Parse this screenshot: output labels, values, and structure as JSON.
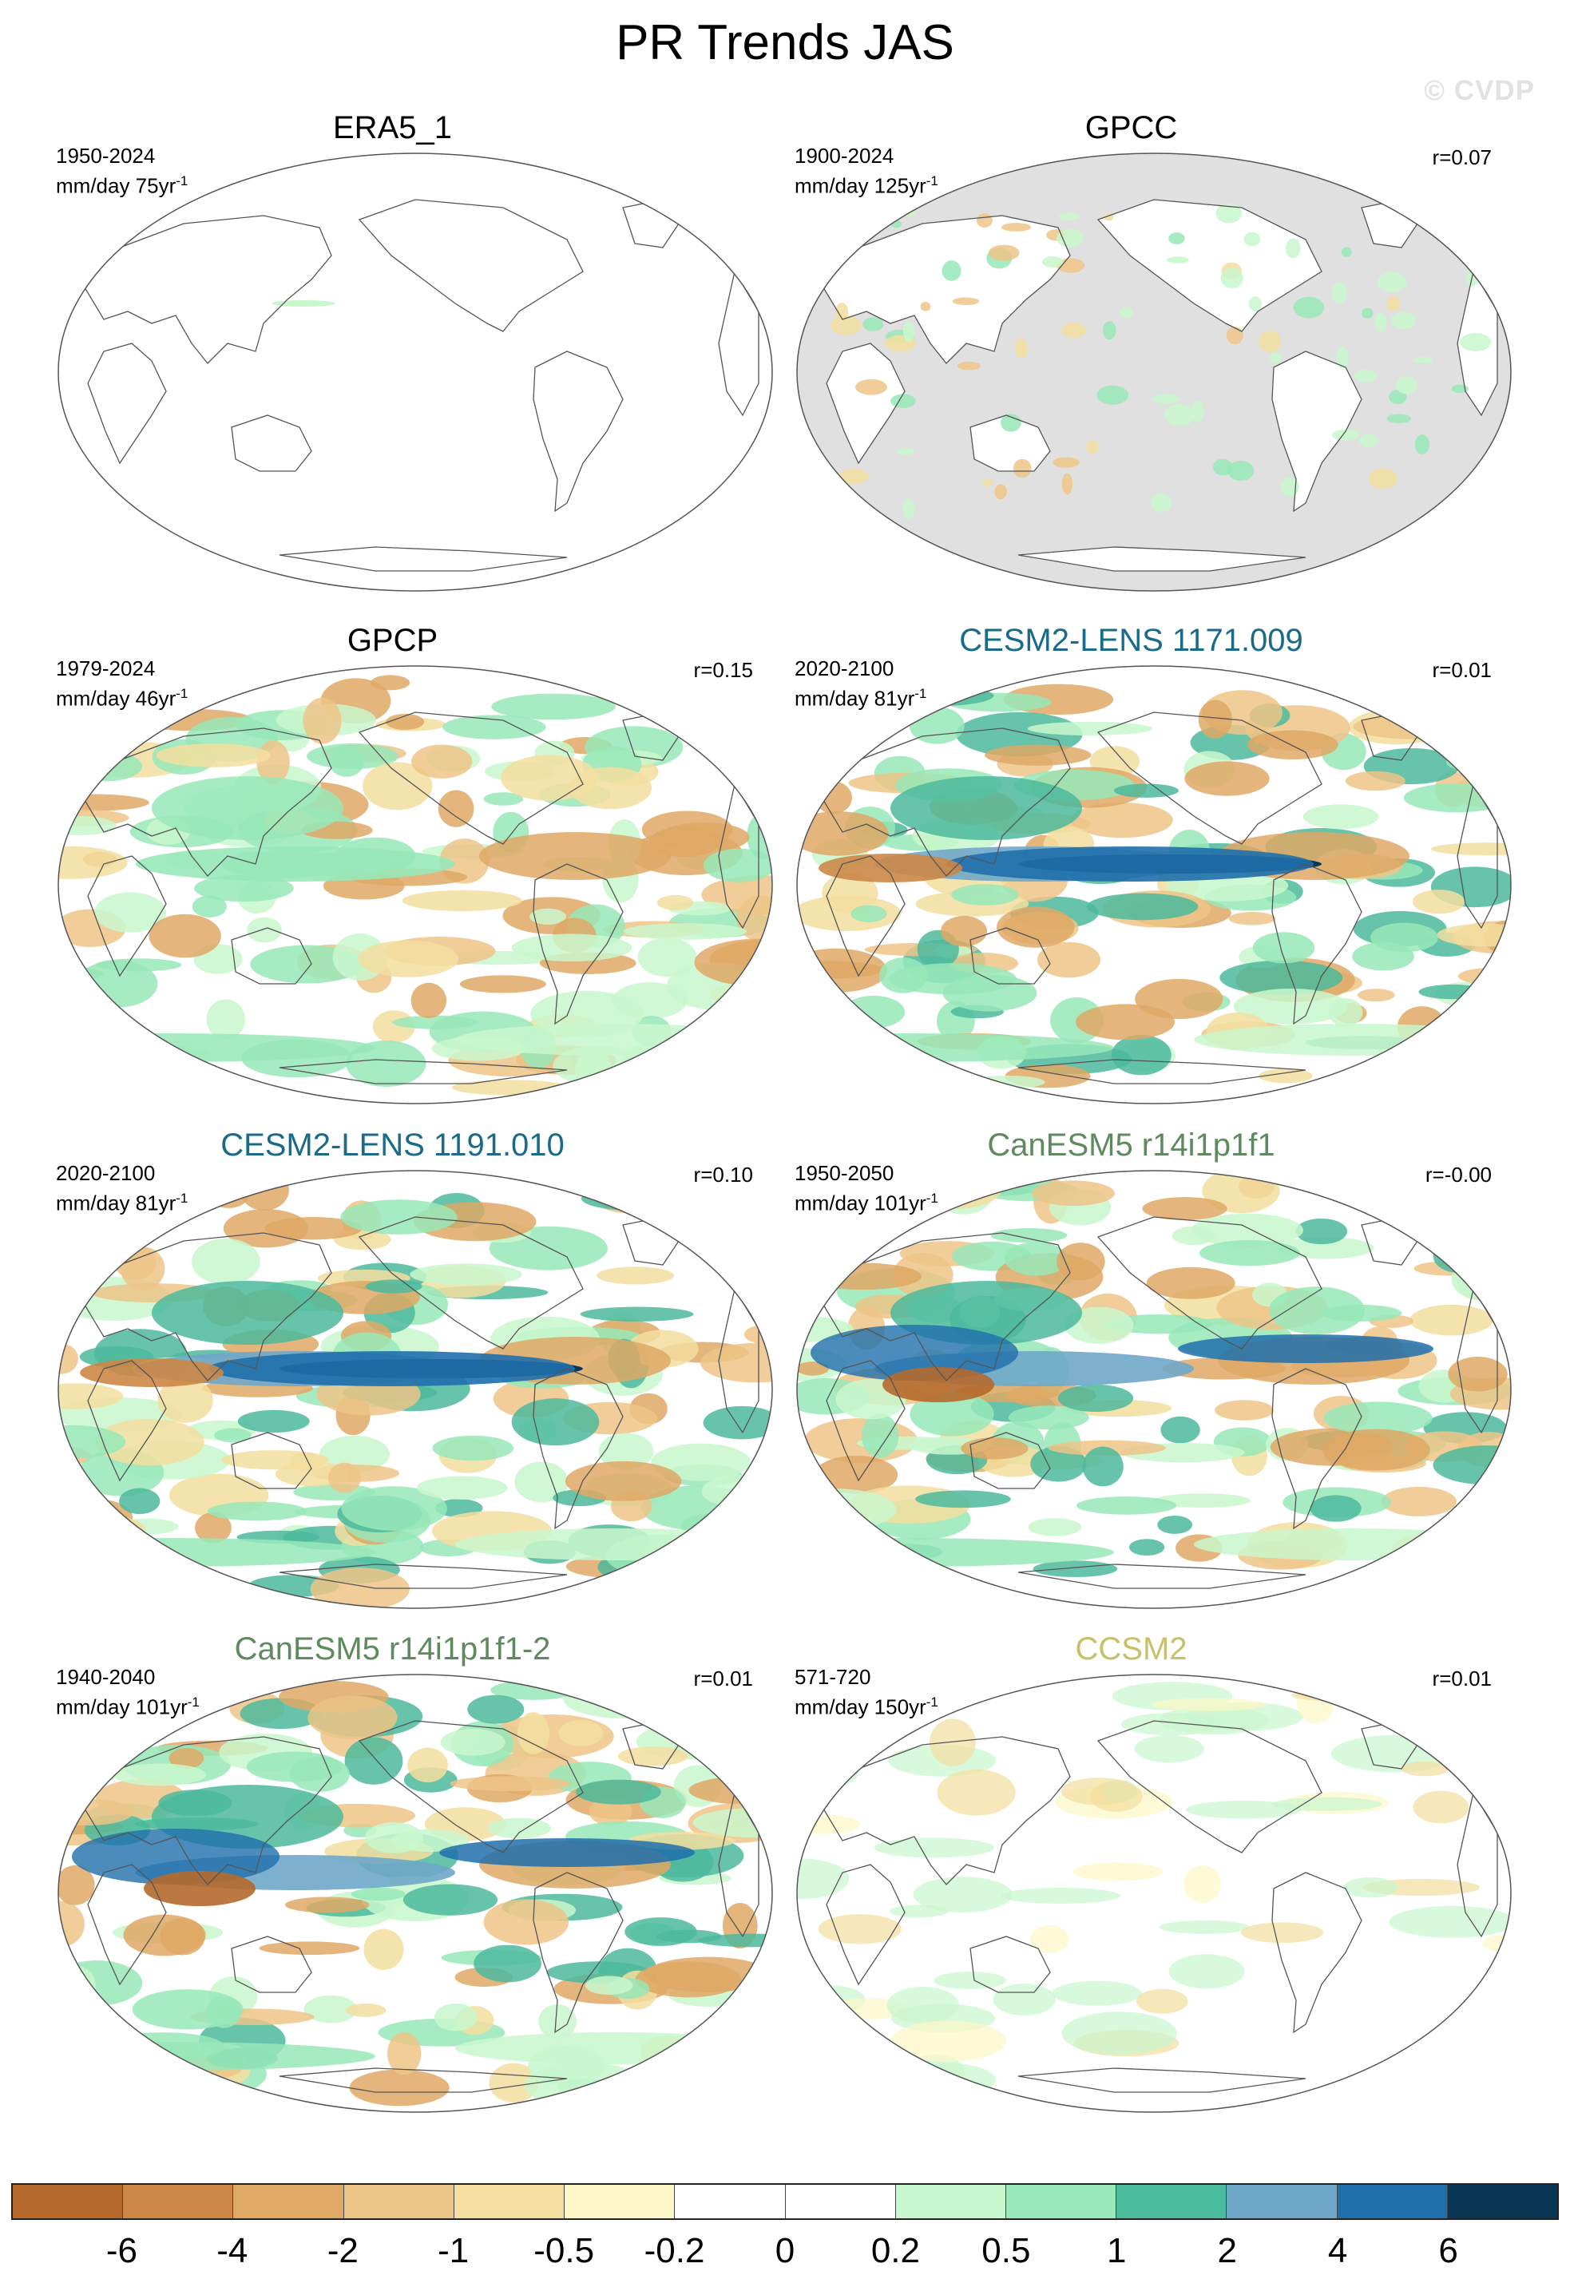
{
  "title": "PR Trends JAS",
  "watermark": "© CVDP",
  "panels": [
    {
      "name": "ERA5_1",
      "title_color": "#000000",
      "period": "1950-2024",
      "units": "mm/day 75yr",
      "unit_exp": "-1",
      "corr": "",
      "ocean_masked": false,
      "pattern": "empty"
    },
    {
      "name": "GPCC",
      "title_color": "#000000",
      "period": "1900-2024",
      "units": "mm/day 125yr",
      "unit_exp": "-1",
      "corr": "r=0.07",
      "ocean_masked": true,
      "pattern": "land-only"
    },
    {
      "name": "GPCP",
      "title_color": "#000000",
      "period": "1979-2024",
      "units": "mm/day 46yr",
      "unit_exp": "-1",
      "corr": "r=0.15",
      "ocean_masked": false,
      "pattern": "moderate"
    },
    {
      "name": "CESM2-LENS 1171.009",
      "title_color": "#1a6b8a",
      "period": "2020-2100",
      "units": "mm/day 81yr",
      "unit_exp": "-1",
      "corr": "r=0.01",
      "ocean_masked": false,
      "pattern": "strong-equatorial"
    },
    {
      "name": "CESM2-LENS 1191.010",
      "title_color": "#1a6b8a",
      "period": "2020-2100",
      "units": "mm/day 81yr",
      "unit_exp": "-1",
      "corr": "r=0.10",
      "ocean_masked": false,
      "pattern": "strong-equatorial"
    },
    {
      "name": "CanESM5 r14i1p1f1",
      "title_color": "#5f8a5f",
      "period": "1950-2050",
      "units": "mm/day 101yr",
      "unit_exp": "-1",
      "corr": "r=-0.00",
      "ocean_masked": false,
      "pattern": "strong-wide"
    },
    {
      "name": "CanESM5 r14i1p1f1-2",
      "title_color": "#5f8a5f",
      "period": "1940-2040",
      "units": "mm/day 101yr",
      "unit_exp": "-1",
      "corr": "r=0.01",
      "ocean_masked": false,
      "pattern": "strong-wide"
    },
    {
      "name": "CCSM2",
      "title_color": "#c8c06a",
      "period": "571-720",
      "units": "mm/day 150yr",
      "unit_exp": "-1",
      "corr": "r=0.01",
      "ocean_masked": false,
      "pattern": "weak"
    }
  ],
  "colorbar": {
    "colors": [
      "#b5692c",
      "#cc8746",
      "#dfa865",
      "#edc487",
      "#f3dea0",
      "#fdf6c6",
      "#ffffff",
      "#ffffff",
      "#c9f7cd",
      "#98e8b9",
      "#4cba9c",
      "#6fa7c9",
      "#1f6fac",
      "#0a3656"
    ],
    "tick_labels": [
      "-6",
      "-4",
      "-2",
      "-1",
      "-0.5",
      "-0.2",
      "0",
      "0.2",
      "0.5",
      "1",
      "2",
      "4",
      "6"
    ]
  }
}
